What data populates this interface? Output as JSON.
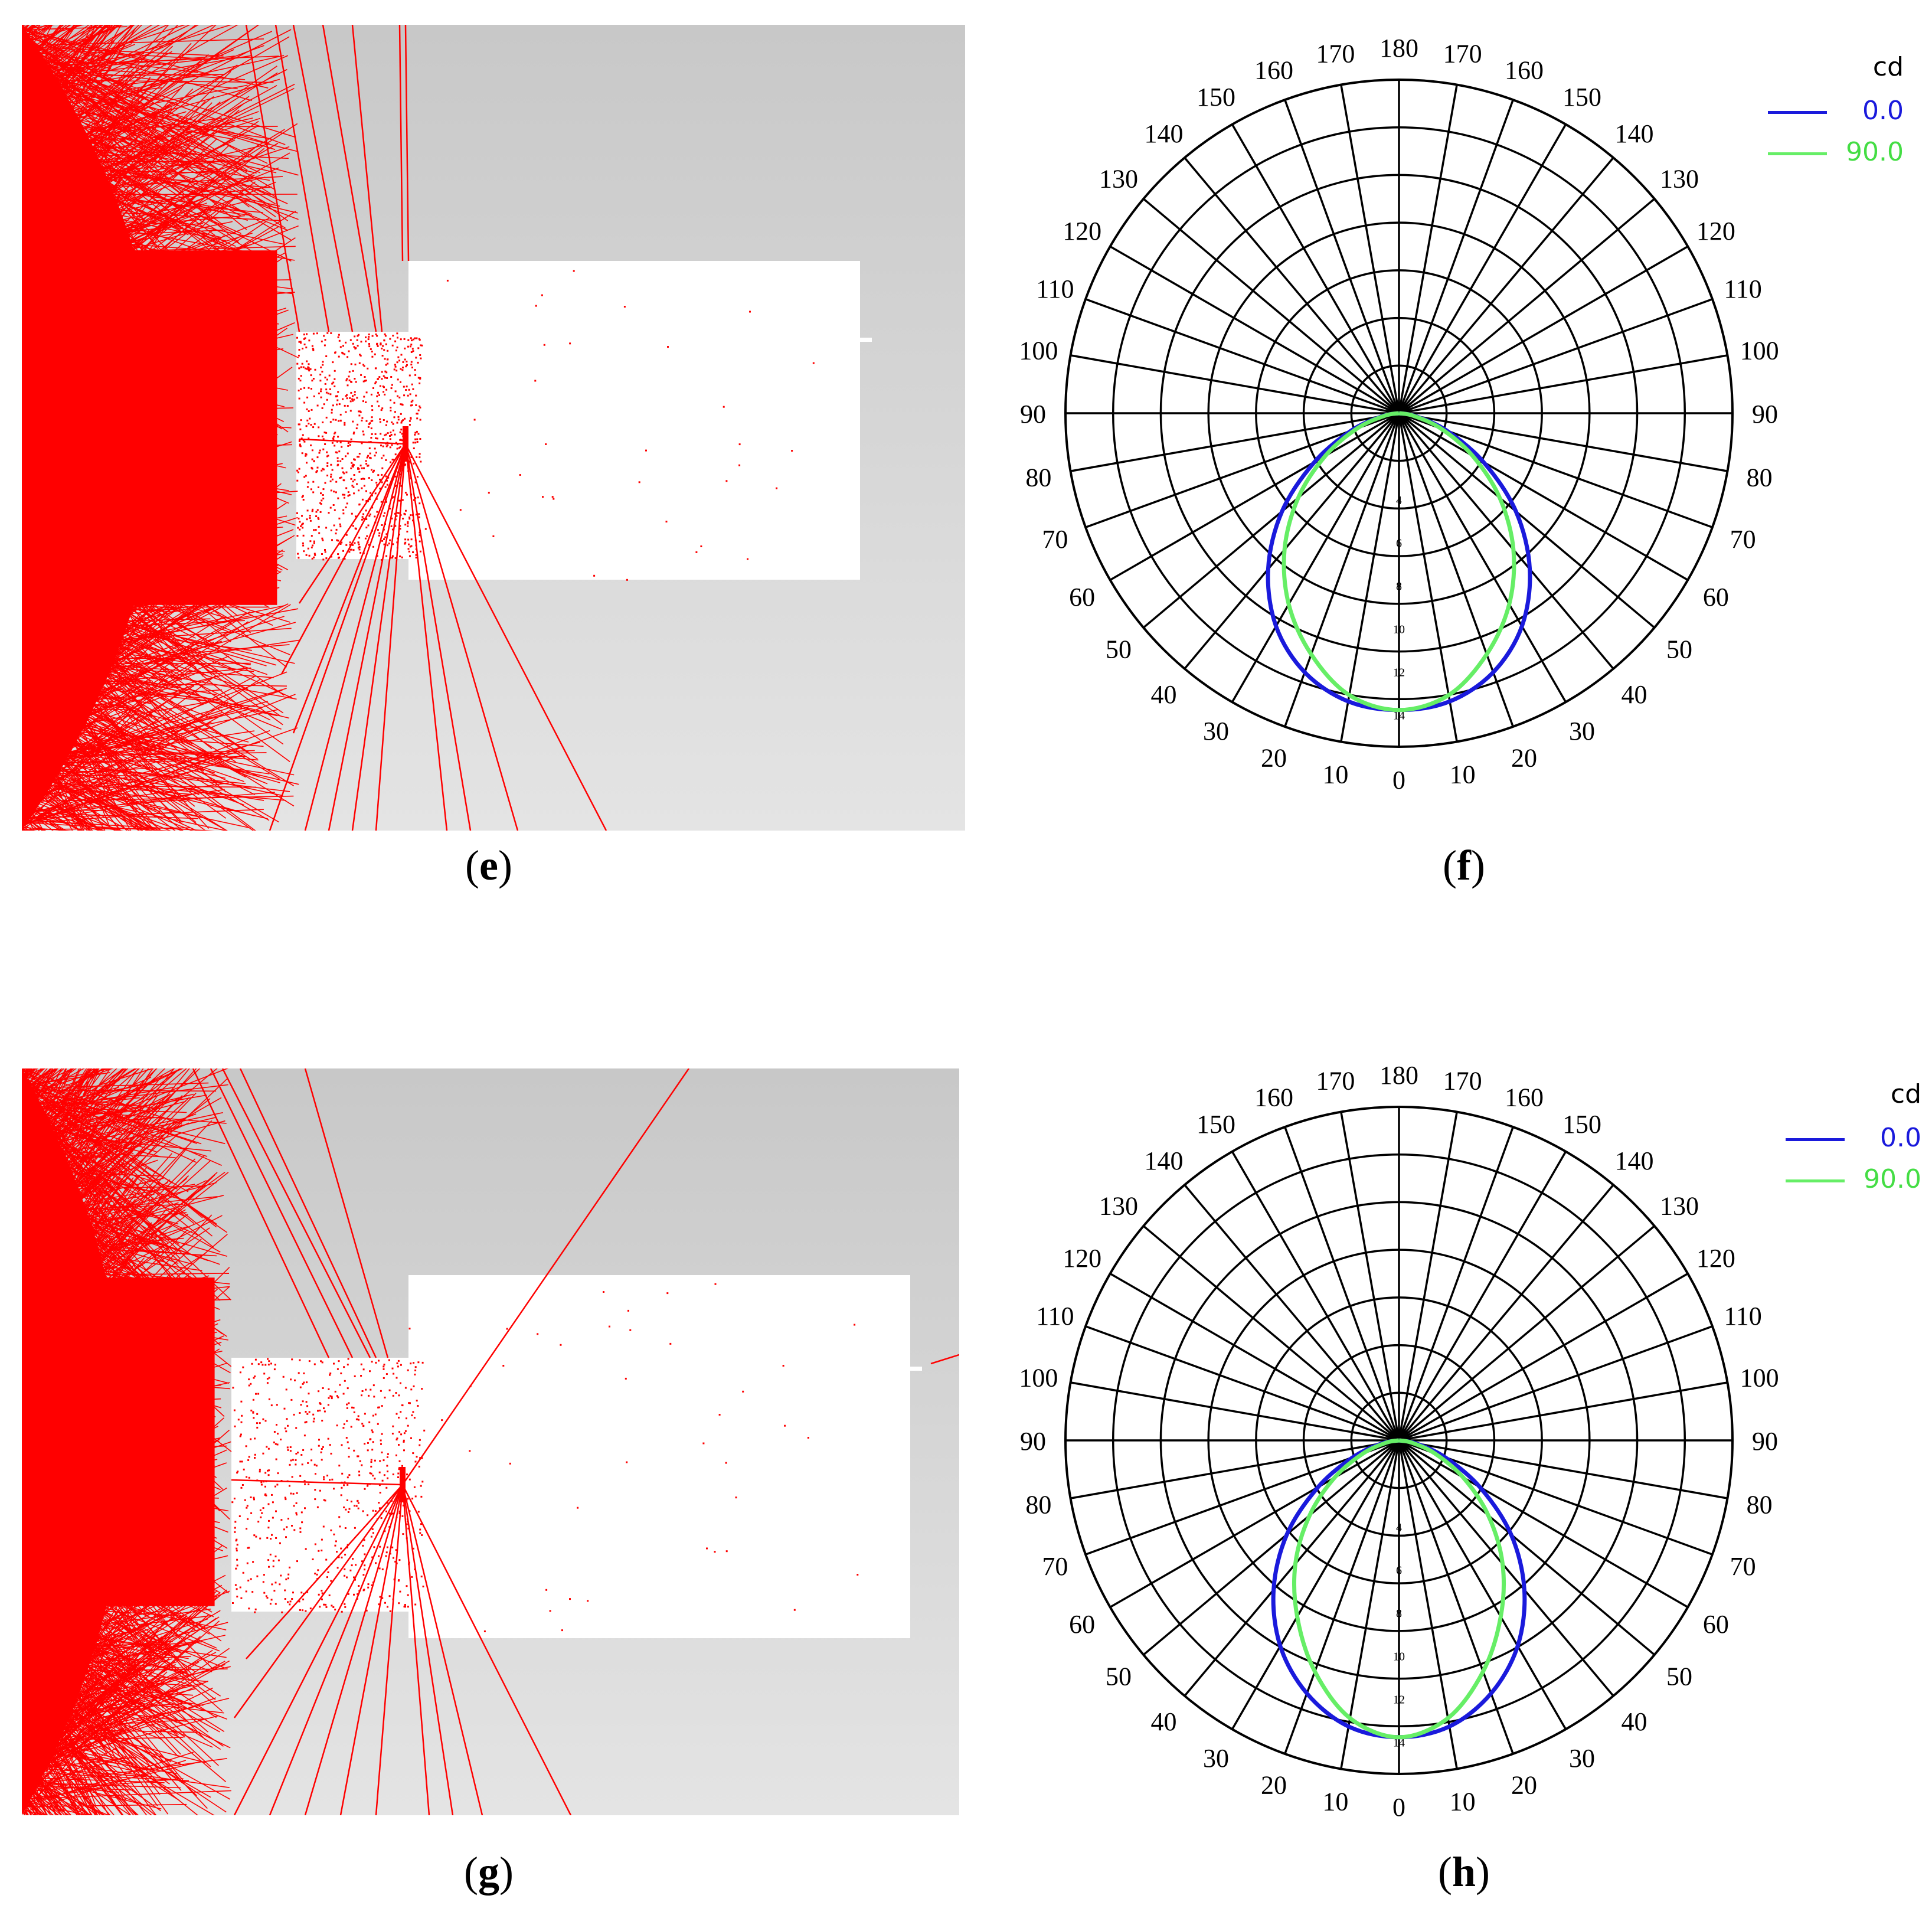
{
  "captions": {
    "e": "e",
    "f": "f",
    "g": "g",
    "h": "h"
  },
  "colors": {
    "ray": "#ff0000",
    "grid": "#000000",
    "series_0": "#1a1adc",
    "series_90": "#66ee66",
    "target": "#ffffff"
  },
  "chart_data": [
    {
      "panel": "f",
      "type": "polar",
      "unit": "cd",
      "angle_labels": [
        "180",
        "170",
        "160",
        "150",
        "140",
        "130",
        "120",
        "110",
        "100",
        "90",
        "80",
        "70",
        "60",
        "50",
        "40",
        "30",
        "20",
        "10",
        "0"
      ],
      "radial_labels": [
        "4",
        "6",
        "8",
        "10",
        "12",
        "14"
      ],
      "rlim": [
        0,
        14
      ],
      "series": [
        {
          "name": "0.0",
          "color": "#1a1adc",
          "angles": [
            0,
            10,
            20,
            30,
            40,
            50,
            60,
            70,
            80,
            90
          ],
          "values": [
            14.0,
            13.8,
            13.0,
            11.6,
            9.6,
            7.2,
            4.6,
            2.4,
            0.8,
            0.0
          ]
        },
        {
          "name": "90.0",
          "color": "#66ee66",
          "angles": [
            0,
            10,
            20,
            30,
            40,
            50,
            60,
            70,
            80,
            90
          ],
          "values": [
            14.0,
            13.5,
            12.1,
            10.4,
            8.4,
            6.2,
            4.0,
            2.1,
            0.7,
            0.0
          ]
        }
      ]
    },
    {
      "panel": "h",
      "type": "polar",
      "unit": "cd",
      "angle_labels": [
        "180",
        "170",
        "160",
        "150",
        "140",
        "130",
        "120",
        "110",
        "100",
        "90",
        "80",
        "70",
        "60",
        "50",
        "40",
        "30",
        "20",
        "10",
        "0"
      ],
      "radial_labels": [
        "4",
        "6",
        "8",
        "10",
        "12",
        "14"
      ],
      "rlim": [
        0,
        14
      ],
      "series": [
        {
          "name": "0.0",
          "color": "#1a1adc",
          "angles": [
            0,
            10,
            20,
            30,
            40,
            50,
            60,
            70,
            80,
            90
          ],
          "values": [
            14.0,
            13.7,
            12.7,
            11.2,
            9.2,
            6.9,
            4.4,
            2.3,
            0.8,
            0.0
          ]
        },
        {
          "name": "90.0",
          "color": "#66ee66",
          "angles": [
            0,
            10,
            20,
            30,
            40,
            50,
            60,
            70,
            80,
            90
          ],
          "values": [
            14.0,
            13.3,
            11.6,
            9.6,
            7.6,
            5.5,
            3.5,
            1.8,
            0.6,
            0.0
          ]
        }
      ]
    }
  ]
}
